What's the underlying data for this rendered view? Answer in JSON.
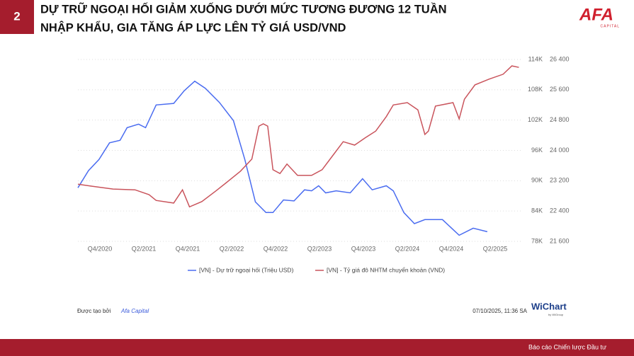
{
  "header": {
    "number": "2",
    "title": [
      "DỰ TRỮ NGOẠI HỐI GIẢM XUỐNG DƯỚI MỨC TƯƠNG ĐƯƠNG 12 TUẦN",
      "NHẬP KHẨU, GIA TĂNG ÁP LỰC LÊN TỶ GIÁ USD/VND"
    ],
    "logo": "AFA",
    "logo_sub": "CAPITAL"
  },
  "chart_data": {
    "type": "line",
    "xlim": [
      2020.5,
      2025.54
    ],
    "xticks": [
      {
        "value": 2020.75,
        "label": "Q4/2020"
      },
      {
        "value": 2021.25,
        "label": "Q2/2021"
      },
      {
        "value": 2021.75,
        "label": "Q4/2021"
      },
      {
        "value": 2022.25,
        "label": "Q2/2022"
      },
      {
        "value": 2022.75,
        "label": "Q4/2022"
      },
      {
        "value": 2023.25,
        "label": "Q2/2023"
      },
      {
        "value": 2023.75,
        "label": "Q4/2023"
      },
      {
        "value": 2024.25,
        "label": "Q2/2024"
      },
      {
        "value": 2024.75,
        "label": "Q4/2024"
      },
      {
        "value": 2025.25,
        "label": "Q2/2025"
      }
    ],
    "ylim": [
      78000,
      114000
    ],
    "yticks": [
      {
        "value": 114000,
        "label": "114K"
      },
      {
        "value": 108000,
        "label": "108K"
      },
      {
        "value": 102000,
        "label": "102K"
      },
      {
        "value": 96000,
        "label": "96K"
      },
      {
        "value": 90000,
        "label": "90K"
      },
      {
        "value": 84000,
        "label": "84K"
      },
      {
        "value": 78000,
        "label": "78K"
      }
    ],
    "y2lim": [
      21600,
      26400
    ],
    "y2ticks": [
      {
        "value": 26400,
        "label": "26 400"
      },
      {
        "value": 25600,
        "label": "25 600"
      },
      {
        "value": 24800,
        "label": "24 800"
      },
      {
        "value": 24000,
        "label": "24 000"
      },
      {
        "value": 23200,
        "label": "23 200"
      },
      {
        "value": 22400,
        "label": "22 400"
      },
      {
        "value": 21600,
        "label": "21 600"
      }
    ],
    "grid": true,
    "series": [
      {
        "name": "[VN] - Dự trữ ngoại hối (Triệu USD)",
        "color": "#4a6cf0",
        "axis": "y",
        "x": [
          2020.5,
          2020.62,
          2020.74,
          2020.86,
          2020.98,
          2021.06,
          2021.19,
          2021.27,
          2021.39,
          2021.59,
          2021.71,
          2021.83,
          2021.95,
          2022.11,
          2022.27,
          2022.4,
          2022.52,
          2022.64,
          2022.72,
          2022.84,
          2022.96,
          2023.08,
          2023.16,
          2023.24,
          2023.32,
          2023.44,
          2023.6,
          2023.74,
          2023.85,
          2024.01,
          2024.09,
          2024.21,
          2024.33,
          2024.45,
          2024.65,
          2024.84,
          2025.0,
          2025.16
        ],
        "values": [
          88600,
          92000,
          94200,
          97500,
          98000,
          100500,
          101200,
          100500,
          105000,
          105300,
          107800,
          109700,
          108300,
          105500,
          101900,
          94200,
          85800,
          83700,
          83700,
          86200,
          86000,
          88200,
          88000,
          89000,
          87600,
          88000,
          87600,
          90400,
          88200,
          89000,
          88000,
          83700,
          81500,
          82300,
          82300,
          79200,
          80600,
          79900
        ]
      },
      {
        "name": "[VN] - Tỷ giá đô NHTM chuyển khoản (VND)",
        "color": "#c9545c",
        "axis": "y2",
        "x": [
          2020.5,
          2020.66,
          2020.9,
          2021.15,
          2021.31,
          2021.39,
          2021.59,
          2021.69,
          2021.77,
          2021.91,
          2022.07,
          2022.19,
          2022.35,
          2022.48,
          2022.56,
          2022.61,
          2022.66,
          2022.72,
          2022.8,
          2022.88,
          2023.0,
          2023.16,
          2023.28,
          2023.4,
          2023.52,
          2023.65,
          2023.77,
          2023.89,
          2024.01,
          2024.09,
          2024.25,
          2024.37,
          2024.45,
          2024.49,
          2024.57,
          2024.77,
          2024.84,
          2024.9,
          2025.02,
          2025.18,
          2025.34,
          2025.44,
          2025.52
        ],
        "values": [
          23110,
          23055,
          22980,
          22960,
          22830,
          22680,
          22610,
          22960,
          22510,
          22650,
          22930,
          23150,
          23450,
          23770,
          24640,
          24700,
          24640,
          23490,
          23390,
          23640,
          23340,
          23340,
          23490,
          23860,
          24230,
          24140,
          24330,
          24510,
          24890,
          25200,
          25260,
          25070,
          24420,
          24510,
          25170,
          25260,
          24830,
          25350,
          25730,
          25880,
          26010,
          26230,
          26190
        ]
      }
    ]
  },
  "footer": {
    "created_by": "Được tạo bởi",
    "author": "Afa Capital",
    "timestamp": "07/10/2025, 11:36 SA",
    "brand": "WiChart",
    "brand_sub": "by WiGroup",
    "report": "Báo cáo Chiến lược Đầu tư"
  }
}
